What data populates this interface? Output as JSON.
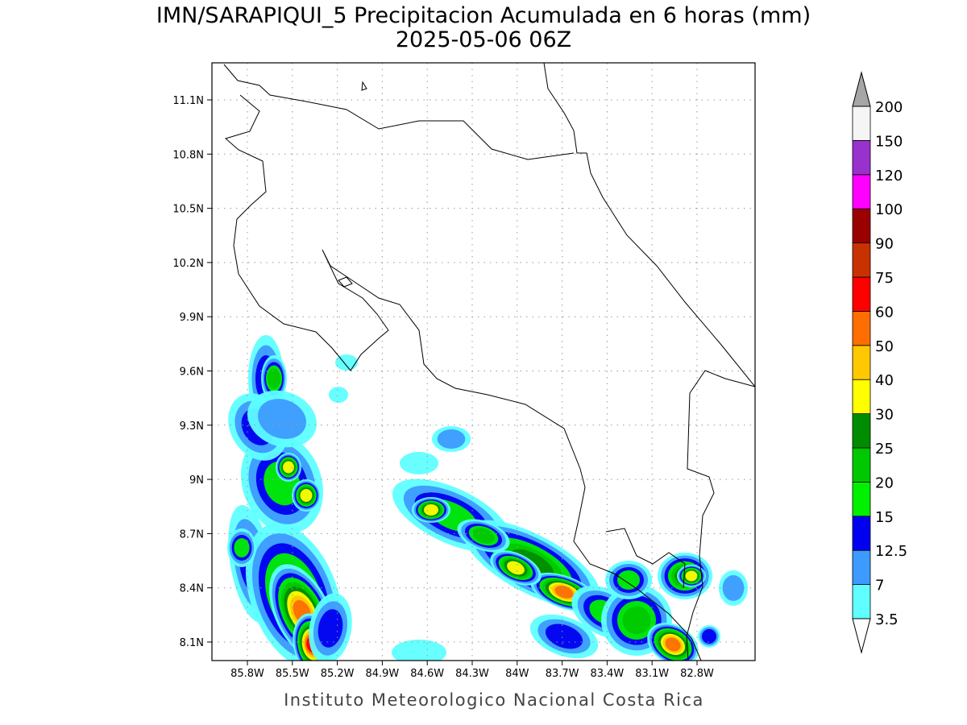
{
  "title": "IMN/SARAPIQUI_5 Precipitacion Acumulada en 6 horas (mm)",
  "subtitle": "2025-05-06 06Z",
  "map": {
    "lat_ticks": [
      "11.1N",
      "10.8N",
      "10.5N",
      "10.2N",
      "9.9N",
      "9.6N",
      "9.3N",
      "9N",
      "8.7N",
      "8.4N",
      "8.1N"
    ],
    "lon_ticks": [
      "85.8W",
      "85.5W",
      "85.2W",
      "84.9W",
      "84.6W",
      "84.3W",
      "84W",
      "83.7W",
      "83.4W",
      "83.1W",
      "82.8W"
    ]
  },
  "colorbar": {
    "labels": [
      3.5,
      7,
      12.5,
      15,
      20,
      25,
      30,
      40,
      50,
      60,
      75,
      90,
      100,
      120,
      150,
      200
    ],
    "colors": [
      "#5fffff",
      "#3d9bff",
      "#0000f0",
      "#00f000",
      "#00c800",
      "#008c00",
      "#ffff00",
      "#ffc800",
      "#ff6e00",
      "#ff0000",
      "#c83200",
      "#9b0000",
      "#ff00ff",
      "#9932cc",
      "#f5f5f5"
    ],
    "under_color": "#ffffff",
    "over_color": "#a6a6a6"
  },
  "footer": "Instituto Meteorologico Nacional Costa Rica"
}
